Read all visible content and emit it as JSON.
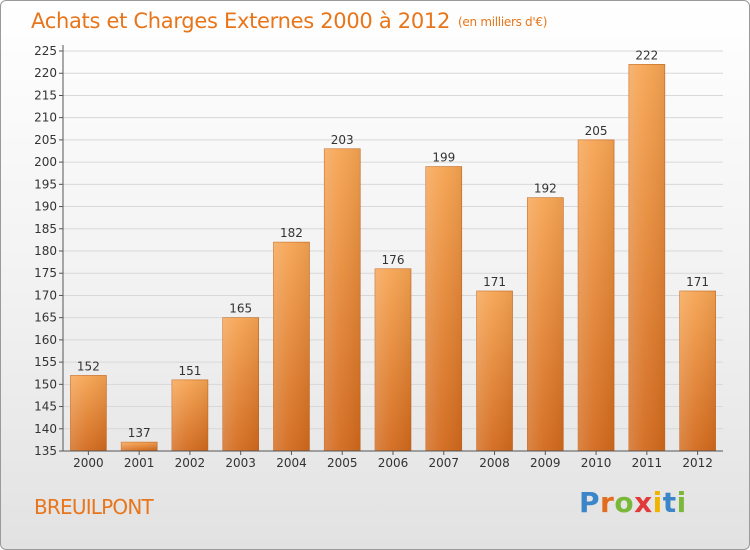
{
  "header": {
    "title": "Achats et Charges Externes 2000 à 2012",
    "unit": "(en milliers d'€)"
  },
  "footer": {
    "municipality": "BREUILPONT",
    "logo": {
      "letters": [
        "P",
        "r",
        "o",
        "x",
        "i",
        "t",
        "i"
      ],
      "colors": [
        "#3a86c8",
        "#e36c1f",
        "#7ab83a",
        "#e23a3a",
        "#f0b400",
        "#3a86c8",
        "#7ab83a"
      ]
    }
  },
  "colors": {
    "title": "#e8751a",
    "bar_top": "#f6a452",
    "bar_bottom": "#d2691c",
    "grid": "#d8d8d8",
    "axis": "#555555"
  },
  "chart_data": {
    "type": "bar",
    "categories": [
      "2000",
      "2001",
      "2002",
      "2003",
      "2004",
      "2005",
      "2006",
      "2007",
      "2008",
      "2009",
      "2010",
      "2011",
      "2012"
    ],
    "values": [
      152,
      137,
      151,
      165,
      182,
      203,
      176,
      199,
      171,
      192,
      205,
      222,
      171
    ],
    "data_labels": [
      "152",
      "137",
      "151",
      "165",
      "182",
      "203",
      "176",
      "199",
      "171",
      "192",
      "205",
      "222",
      "171"
    ],
    "yticks": [
      "135",
      "140",
      "145",
      "150",
      "155",
      "160",
      "165",
      "170",
      "175",
      "180",
      "185",
      "190",
      "195",
      "200",
      "205",
      "210",
      "215",
      "220",
      "225"
    ],
    "ylim": [
      135,
      225
    ],
    "grid": true,
    "legend": "none"
  }
}
